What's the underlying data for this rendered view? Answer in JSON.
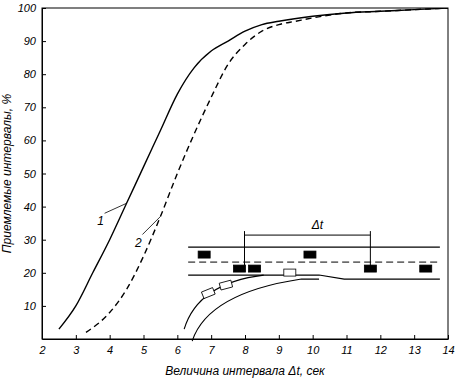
{
  "chart_data": {
    "type": "line",
    "x_label": "Величина интервала Δt, сек",
    "y_label": "Приемлемые интервалы, %",
    "xlim": [
      2,
      14
    ],
    "xticks": [
      2,
      3,
      4,
      5,
      6,
      7,
      8,
      9,
      10,
      11,
      12,
      13,
      14
    ],
    "ylim": [
      0,
      100
    ],
    "yticks": [
      10,
      20,
      30,
      40,
      50,
      60,
      70,
      80,
      90,
      100
    ],
    "grid": false,
    "series": [
      {
        "name": "1",
        "color": "#000000",
        "line_style": "solid",
        "x": [
          2.5,
          3,
          3.5,
          4,
          4.5,
          5,
          5.5,
          6,
          6.5,
          7,
          7.5,
          8,
          8.5,
          9,
          10,
          11,
          12,
          13,
          14
        ],
        "values": [
          3,
          10,
          20,
          30,
          41,
          52,
          63,
          74,
          82,
          87,
          90,
          93,
          95,
          96,
          97.5,
          98.5,
          99,
          99.5,
          100
        ]
      },
      {
        "name": "2",
        "color": "#000000",
        "line_style": "dashed",
        "x": [
          3.3,
          4,
          4.5,
          5,
          5.5,
          6,
          6.5,
          7,
          7.5,
          8,
          8.5,
          9,
          9.5,
          10,
          11,
          12,
          13,
          14
        ],
        "values": [
          2,
          8,
          15,
          25,
          37,
          50,
          62,
          73,
          83,
          89,
          93,
          95,
          96,
          97,
          98.5,
          99,
          99.5,
          100
        ]
      }
    ],
    "annotations": [
      {
        "text": "Δt"
      }
    ]
  }
}
